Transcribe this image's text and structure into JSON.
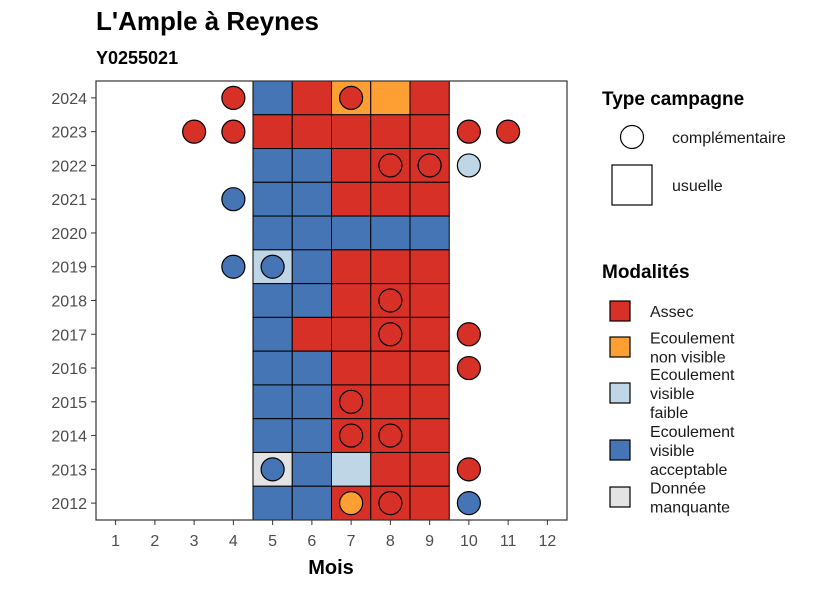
{
  "chart_data": {
    "type": "heatmap",
    "title": "L'Ample à Reynes",
    "subtitle": "Y0255021",
    "xlabel": "Mois",
    "ylabel": "",
    "x_ticks": [
      "1",
      "2",
      "3",
      "4",
      "5",
      "6",
      "7",
      "8",
      "9",
      "10",
      "11",
      "12"
    ],
    "xlim": [
      0.5,
      12.5
    ],
    "y_ticks": [
      "2012",
      "2013",
      "2014",
      "2015",
      "2016",
      "2017",
      "2018",
      "2019",
      "2020",
      "2021",
      "2022",
      "2023",
      "2024"
    ],
    "grid": false,
    "colors": {
      "assec": "#d73027",
      "ecoulement_non_visible": "#fd9f32",
      "ecoulement_faible": "#bfd6e6",
      "ecoulement_acceptable": "#4575b4",
      "donnee_manquante": "#e3e3e3"
    },
    "legend_campagne": {
      "title": "Type campagne",
      "items": [
        {
          "key": "complementaire",
          "label": "complémentaire",
          "shape": "circle"
        },
        {
          "key": "usuelle",
          "label": "usuelle",
          "shape": "square"
        }
      ]
    },
    "legend_modalites": {
      "title": "Modalités",
      "items": [
        {
          "key": "assec",
          "lines": [
            "Assec"
          ]
        },
        {
          "key": "ecoulement_non_visible",
          "lines": [
            "Ecoulement",
            "non visible"
          ]
        },
        {
          "key": "ecoulement_faible",
          "lines": [
            "Ecoulement",
            "visible",
            "faible"
          ]
        },
        {
          "key": "ecoulement_acceptable",
          "lines": [
            "Ecoulement",
            "visible",
            "acceptable"
          ]
        },
        {
          "key": "donnee_manquante",
          "lines": [
            "Donnée",
            "manquante"
          ]
        }
      ]
    },
    "usuelle": [
      {
        "year": 2024,
        "months": [
          5,
          6,
          7,
          8,
          9
        ],
        "values": [
          "ecoulement_acceptable",
          "assec",
          "ecoulement_non_visible",
          "ecoulement_non_visible",
          "assec"
        ]
      },
      {
        "year": 2023,
        "months": [
          5,
          6,
          7,
          8,
          9
        ],
        "values": [
          "assec",
          "assec",
          "assec",
          "assec",
          "assec"
        ]
      },
      {
        "year": 2022,
        "months": [
          5,
          6,
          7,
          8,
          9
        ],
        "values": [
          "ecoulement_acceptable",
          "ecoulement_acceptable",
          "assec",
          "assec",
          "assec"
        ]
      },
      {
        "year": 2021,
        "months": [
          5,
          6,
          7,
          8,
          9
        ],
        "values": [
          "ecoulement_acceptable",
          "ecoulement_acceptable",
          "assec",
          "assec",
          "assec"
        ]
      },
      {
        "year": 2020,
        "months": [
          5,
          6,
          7,
          8,
          9
        ],
        "values": [
          "ecoulement_acceptable",
          "ecoulement_acceptable",
          "ecoulement_acceptable",
          "ecoulement_acceptable",
          "ecoulement_acceptable"
        ]
      },
      {
        "year": 2019,
        "months": [
          5,
          6,
          7,
          8,
          9
        ],
        "values": [
          "ecoulement_faible",
          "ecoulement_acceptable",
          "assec",
          "assec",
          "assec"
        ]
      },
      {
        "year": 2018,
        "months": [
          5,
          6,
          7,
          8,
          9
        ],
        "values": [
          "ecoulement_acceptable",
          "ecoulement_acceptable",
          "assec",
          "assec",
          "assec"
        ]
      },
      {
        "year": 2017,
        "months": [
          5,
          6,
          7,
          8,
          9
        ],
        "values": [
          "ecoulement_acceptable",
          "assec",
          "assec",
          "assec",
          "assec"
        ]
      },
      {
        "year": 2016,
        "months": [
          5,
          6,
          7,
          8,
          9
        ],
        "values": [
          "ecoulement_acceptable",
          "ecoulement_acceptable",
          "assec",
          "assec",
          "assec"
        ]
      },
      {
        "year": 2015,
        "months": [
          5,
          6,
          7,
          8,
          9
        ],
        "values": [
          "ecoulement_acceptable",
          "ecoulement_acceptable",
          "assec",
          "assec",
          "assec"
        ]
      },
      {
        "year": 2014,
        "months": [
          5,
          6,
          7,
          8,
          9
        ],
        "values": [
          "ecoulement_acceptable",
          "ecoulement_acceptable",
          "assec",
          "assec",
          "assec"
        ]
      },
      {
        "year": 2013,
        "months": [
          5,
          6,
          7,
          8,
          9
        ],
        "values": [
          "donnee_manquante",
          "ecoulement_acceptable",
          "ecoulement_faible",
          "assec",
          "assec"
        ]
      },
      {
        "year": 2012,
        "months": [
          5,
          6,
          7,
          8,
          9
        ],
        "values": [
          "ecoulement_acceptable",
          "ecoulement_acceptable",
          "assec",
          "assec",
          "assec"
        ]
      }
    ],
    "complementaire": [
      {
        "year": 2024,
        "month": 4,
        "value": "assec"
      },
      {
        "year": 2024,
        "month": 7,
        "value": "assec"
      },
      {
        "year": 2023,
        "month": 3,
        "value": "assec"
      },
      {
        "year": 2023,
        "month": 4,
        "value": "assec"
      },
      {
        "year": 2023,
        "month": 10,
        "value": "assec"
      },
      {
        "year": 2023,
        "month": 11,
        "value": "assec"
      },
      {
        "year": 2022,
        "month": 8,
        "value": "assec"
      },
      {
        "year": 2022,
        "month": 9,
        "value": "assec"
      },
      {
        "year": 2022,
        "month": 10,
        "value": "ecoulement_faible"
      },
      {
        "year": 2021,
        "month": 4,
        "value": "ecoulement_acceptable"
      },
      {
        "year": 2019,
        "month": 4,
        "value": "ecoulement_acceptable"
      },
      {
        "year": 2019,
        "month": 5,
        "value": "ecoulement_acceptable"
      },
      {
        "year": 2018,
        "month": 8,
        "value": "assec"
      },
      {
        "year": 2017,
        "month": 8,
        "value": "assec"
      },
      {
        "year": 2017,
        "month": 10,
        "value": "assec"
      },
      {
        "year": 2016,
        "month": 10,
        "value": "assec"
      },
      {
        "year": 2015,
        "month": 7,
        "value": "assec"
      },
      {
        "year": 2014,
        "month": 7,
        "value": "assec"
      },
      {
        "year": 2014,
        "month": 8,
        "value": "assec"
      },
      {
        "year": 2013,
        "month": 5,
        "value": "ecoulement_acceptable"
      },
      {
        "year": 2013,
        "month": 10,
        "value": "assec"
      },
      {
        "year": 2012,
        "month": 7,
        "value": "ecoulement_non_visible"
      },
      {
        "year": 2012,
        "month": 8,
        "value": "assec"
      },
      {
        "year": 2012,
        "month": 10,
        "value": "ecoulement_acceptable"
      }
    ]
  }
}
